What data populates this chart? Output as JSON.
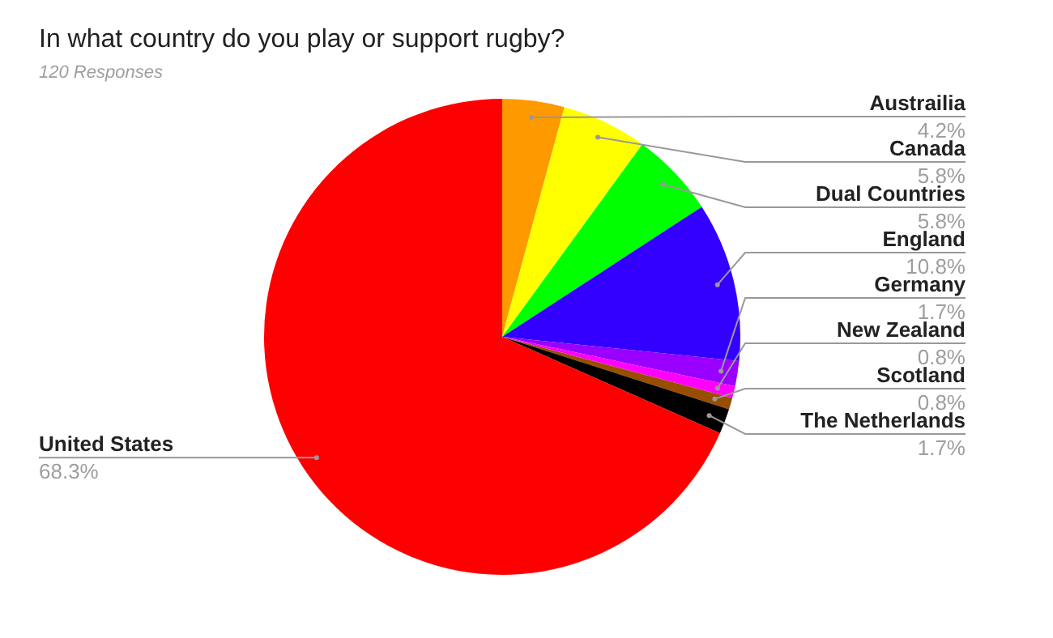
{
  "chart_data": {
    "type": "pie",
    "title": "In what country do you play or support rugby?",
    "subtitle": "120 Responses",
    "categories": [
      "Austrailia",
      "Canada",
      "Dual Countries",
      "England",
      "Germany",
      "New Zealand",
      "Scotland",
      "The Netherlands",
      "United States"
    ],
    "values": [
      4.2,
      5.8,
      5.8,
      10.8,
      1.7,
      0.8,
      0.8,
      1.7,
      68.3
    ],
    "colors": [
      "#ff9900",
      "#ffff00",
      "#00ff00",
      "#3300ff",
      "#9900ff",
      "#ff00ff",
      "#994d00",
      "#000000",
      "#ff0000"
    ],
    "value_labels": [
      "4.2%",
      "5.8%",
      "5.8%",
      "10.8%",
      "1.7%",
      "0.8%",
      "0.8%",
      "1.7%",
      "68.3%"
    ]
  }
}
